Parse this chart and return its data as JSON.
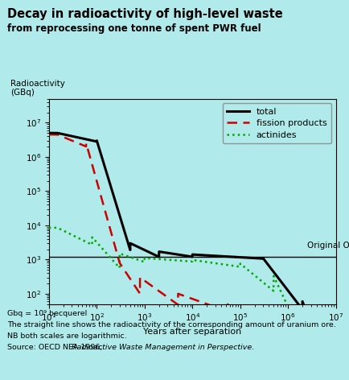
{
  "title": "Decay in radioactivity of high-level waste",
  "subtitle": "from reprocessing one tonne of spent PWR fuel",
  "ylabel_line1": "Radioactivity",
  "ylabel_line2": "(GBq)",
  "xlabel": "Years after separation",
  "background_color": "#b0eaea",
  "plot_bg_color": "#b0eaea",
  "original_ore_value": 1200,
  "original_ore_label": "Original Ore",
  "xlim": [
    10,
    10000000.0
  ],
  "ylim": [
    50,
    50000000.0
  ],
  "footnote1": "Gbq = 10⁹ becquerel",
  "footnote2": "The straight line shows the radioactivity of the corresponding amount of uranium ore.",
  "footnote3": "NB both scales are logarithmic.",
  "footnote4": "Source: OECD NEA 1996, Radioactive Waste Management in Perspective.",
  "legend_entries": [
    "total",
    "fission products",
    "actinides"
  ]
}
